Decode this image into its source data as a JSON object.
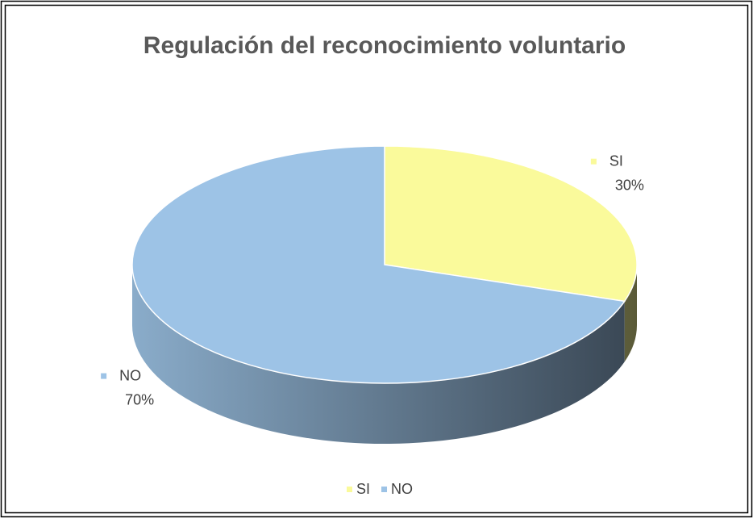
{
  "chart_data": {
    "type": "pie",
    "title": "Regulación del reconocimiento voluntario",
    "categories": [
      "SI",
      "NO"
    ],
    "values": [
      30,
      70
    ],
    "value_labels": [
      "30%",
      "70%"
    ],
    "colors": [
      "#fafa9b",
      "#9dc3e6"
    ],
    "legend": "bottom"
  }
}
